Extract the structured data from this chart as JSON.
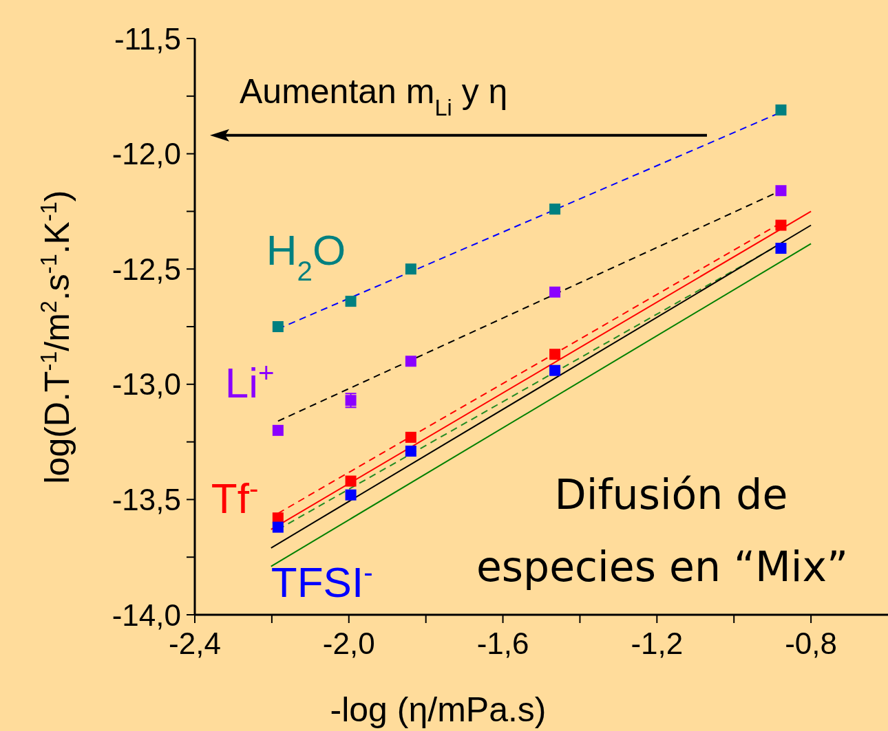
{
  "chart_data": {
    "type": "scatter",
    "xlabel": "-log (η/mPa.s)",
    "ylabel": "log(D.T$^{-1}$/m$^{2}$.s$^{-1}$.K$^{-1}$)",
    "xlim": [
      -2.4,
      -0.6
    ],
    "ylim": [
      -14,
      -11.5
    ],
    "xticks": [
      {
        "value": -2.4,
        "label": "-2,4"
      },
      {
        "value": -2.2,
        "label": null
      },
      {
        "value": -2.0,
        "label": "-2,0"
      },
      {
        "value": -1.8,
        "label": null
      },
      {
        "value": -1.6,
        "label": "-1,6"
      },
      {
        "value": -1.4,
        "label": null
      },
      {
        "value": -1.2,
        "label": "-1,2"
      },
      {
        "value": -1.0,
        "label": null
      },
      {
        "value": -0.8,
        "label": "-0,8"
      }
    ],
    "yticks": [
      {
        "value": -14,
        "label": "-14,0"
      },
      {
        "value": -13.75,
        "label": null
      },
      {
        "value": -13.5,
        "label": "-13,5"
      },
      {
        "value": -13.25,
        "label": null
      },
      {
        "value": -13,
        "label": "-13,0"
      },
      {
        "value": -12.75,
        "label": null
      },
      {
        "value": -12.5,
        "label": "-12,5"
      },
      {
        "value": -12.25,
        "label": null
      },
      {
        "value": -12,
        "label": "-12,0"
      },
      {
        "value": -11.75,
        "label": null
      },
      {
        "value": -11.5,
        "label": "-11,5"
      }
    ],
    "marker": "square",
    "grid": false,
    "annotations": [
      "Aumentan m$_{Li}$ y η",
      "Difusión de\nespecies en “Mix”"
    ],
    "series": [
      {
        "name": "H$_{2}$O",
        "color": "#008080",
        "x": [
          -2.184,
          -1.995,
          -1.839,
          -1.465,
          -0.878
        ],
        "values": [
          -12.75,
          -12.64,
          -12.5,
          -12.24,
          -11.81
        ]
      },
      {
        "name": "Li$^{+}$",
        "color": "#8b00ff",
        "x": [
          -2.184,
          -1.995,
          -1.839,
          -1.465,
          -0.878
        ],
        "values": [
          -13.2,
          -13.07,
          -12.9,
          -12.6,
          -12.16
        ],
        "errors": [
          null,
          0.03,
          null,
          null,
          null
        ]
      },
      {
        "name": "Tf$^{-}$",
        "color": "#ff0000",
        "x": [
          -2.184,
          -1.995,
          -1.839,
          -1.465,
          -0.878
        ],
        "values": [
          -13.58,
          -13.42,
          -13.23,
          -12.87,
          -12.31
        ]
      },
      {
        "name": "TFSI$^{-}$",
        "color": "#0000ff",
        "x": [
          -2.184,
          -1.995,
          -1.839,
          -1.465,
          -0.878
        ],
        "values": [
          -13.62,
          -13.48,
          -13.29,
          -12.94,
          -12.41
        ]
      },
      {
        "type": "line",
        "color": "#0000ff",
        "line_style": "dashed",
        "marker": "none",
        "x": [
          -2.184,
          -0.878
        ],
        "values": [
          -12.76,
          -11.82
        ]
      },
      {
        "type": "line",
        "color": "#000000",
        "line_style": "dashed",
        "marker": "none",
        "x": [
          -2.184,
          -0.878
        ],
        "values": [
          -13.16,
          -12.16
        ]
      },
      {
        "type": "line",
        "color": "#ff0000",
        "line_style": "dashed",
        "marker": "none",
        "x": [
          -2.184,
          -0.878
        ],
        "values": [
          -13.56,
          -12.3
        ]
      },
      {
        "type": "line",
        "color": "#228b22",
        "line_style": "dashed",
        "marker": "none",
        "x": [
          -2.184,
          -0.878
        ],
        "values": [
          -13.63,
          -12.39
        ]
      },
      {
        "type": "line",
        "color": "#ff0000",
        "line_style": "solid",
        "marker": "none",
        "x": [
          -2.202,
          -0.8
        ],
        "values": [
          -13.63,
          -12.25
        ]
      },
      {
        "type": "line",
        "color": "#000000",
        "line_style": "solid",
        "marker": "none",
        "x": [
          -2.202,
          -0.8
        ],
        "values": [
          -13.71,
          -12.31
        ]
      },
      {
        "type": "line",
        "color": "#008000",
        "line_style": "solid",
        "marker": "none",
        "x": [
          -2.202,
          -0.8
        ],
        "values": [
          -13.79,
          -12.39
        ]
      }
    ]
  }
}
